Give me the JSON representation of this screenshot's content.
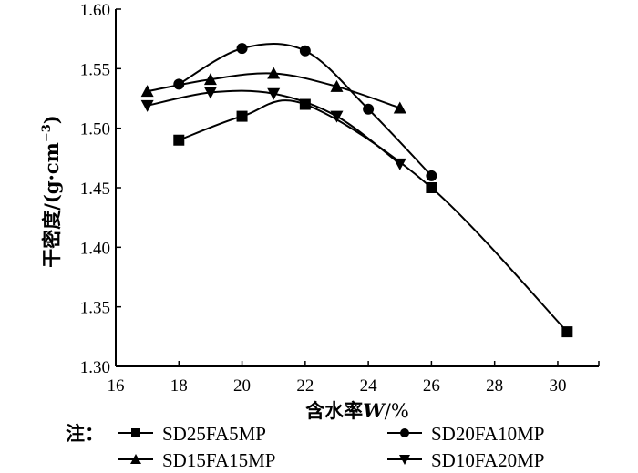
{
  "chart_data": {
    "type": "line",
    "title": "",
    "xlabel": "含水率W/%",
    "xlabel_parts": {
      "prefix": "含水率",
      "var": "W",
      "suffix": "/%"
    },
    "ylabel": "干密度/(g·cm⁻³)",
    "ylabel_parts": {
      "main": "干密度/(g·cm",
      "sup": "−3",
      "close": ")"
    },
    "xlim": [
      16,
      31.3
    ],
    "ylim": [
      1.3,
      1.6
    ],
    "xticks": [
      16,
      18,
      20,
      22,
      24,
      26,
      28,
      30
    ],
    "xtick_labels": [
      "16",
      "18",
      "20",
      "22",
      "24",
      "26",
      "28",
      "30"
    ],
    "yticks": [
      1.3,
      1.35,
      1.4,
      1.45,
      1.5,
      1.55,
      1.6
    ],
    "ytick_labels": [
      "1.30",
      "1.35",
      "1.40",
      "1.45",
      "1.50",
      "1.55",
      "1.60"
    ],
    "grid": false,
    "legend_position": "bottom",
    "legend_note": "注：",
    "series": [
      {
        "name": "SD25FA5MP",
        "marker": "square",
        "x": [
          18,
          20,
          22,
          26,
          30.3
        ],
        "y": [
          1.49,
          1.51,
          1.52,
          1.45,
          1.329
        ]
      },
      {
        "name": "SD20FA10MP",
        "marker": "circle",
        "x": [
          18,
          20,
          22,
          24,
          26
        ],
        "y": [
          1.537,
          1.567,
          1.565,
          1.516,
          1.46
        ]
      },
      {
        "name": "SD15FA15MP",
        "marker": "triangle-up",
        "x": [
          17,
          19,
          21,
          23,
          25
        ],
        "y": [
          1.531,
          1.541,
          1.546,
          1.535,
          1.517
        ]
      },
      {
        "name": "SD10FA20MP",
        "marker": "triangle-down",
        "x": [
          17,
          19,
          21,
          23,
          25
        ],
        "y": [
          1.519,
          1.53,
          1.529,
          1.51,
          1.47
        ]
      }
    ]
  }
}
